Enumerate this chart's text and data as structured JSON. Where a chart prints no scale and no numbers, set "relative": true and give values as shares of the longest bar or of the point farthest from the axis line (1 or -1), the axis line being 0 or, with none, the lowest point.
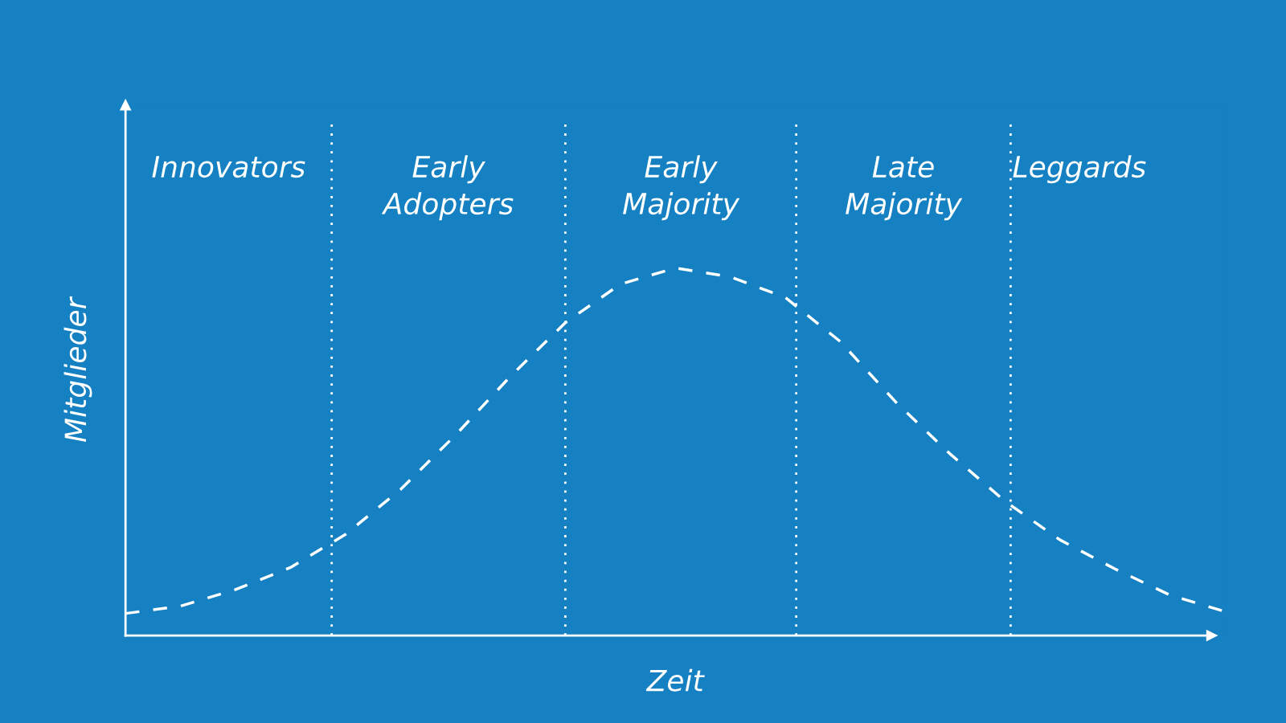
{
  "chart_data": {
    "type": "line",
    "relative": true,
    "xlabel": "Zeit",
    "ylabel": "Mitglieder",
    "categories": [
      null,
      null,
      null,
      null,
      null,
      null,
      null,
      null,
      null,
      null,
      null,
      null,
      null,
      null,
      null,
      null,
      null,
      null,
      null,
      null,
      null
    ],
    "series": [
      {
        "color": "#ffffff",
        "line_style": "dashed",
        "values": [
          0.06,
          0.08,
          0.125,
          0.185,
          0.275,
          0.397,
          0.545,
          0.705,
          0.851,
          0.956,
          1.0,
          0.976,
          0.92,
          0.8,
          0.637,
          0.494,
          0.365,
          0.26,
          0.181,
          0.11,
          0.065
        ]
      }
    ],
    "annotations": [
      "Innovators",
      "Early\nAdopters",
      "Early\nMajority",
      "Late\nMajority",
      "Leggards"
    ],
    "legend": false,
    "tick_labels": false,
    "marker": "none"
  }
}
